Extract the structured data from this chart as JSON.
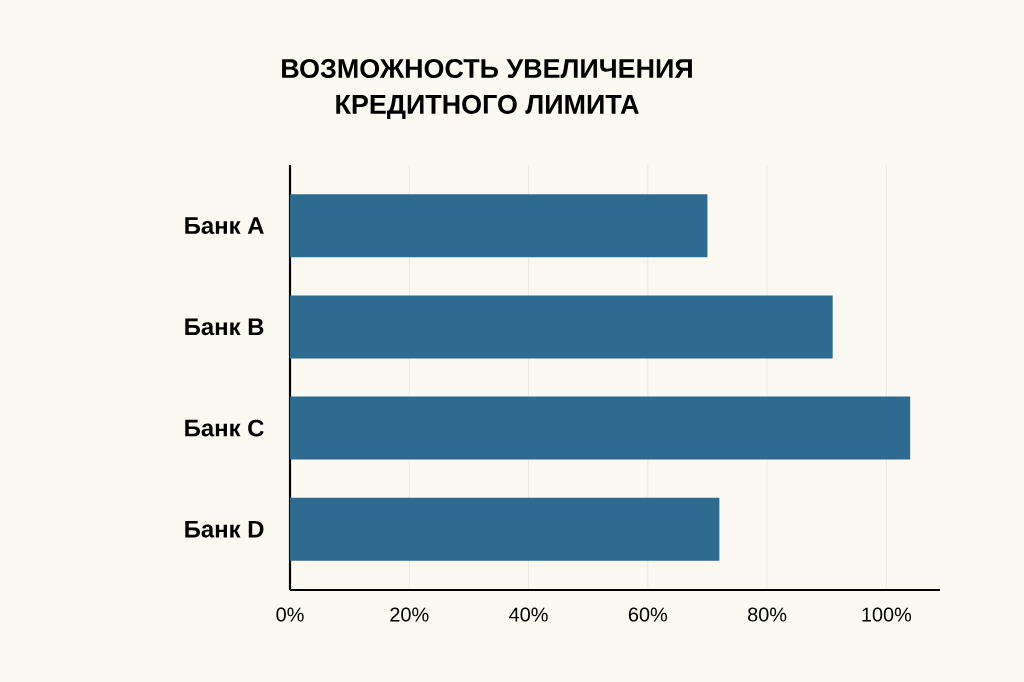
{
  "chart_data": {
    "type": "bar",
    "orientation": "horizontal",
    "title": "ВОЗМОЖНОСТЬ УВЕЛИЧЕНИЯ\nКРЕДИТНОГО ЛИМИТА",
    "categories": [
      "Банк A",
      "Банк B",
      "Банк C",
      "Банк D"
    ],
    "values": [
      70,
      91,
      104,
      72
    ],
    "color": "#2e6b91",
    "xlim": [
      0,
      109
    ],
    "xticks": [
      {
        "value": 0,
        "label": "0%"
      },
      {
        "value": 20,
        "label": "20%"
      },
      {
        "value": 40,
        "label": "40%"
      },
      {
        "value": 60,
        "label": "60%"
      },
      {
        "value": 80,
        "label": "80%"
      },
      {
        "value": 100,
        "label": "100%"
      }
    ],
    "grid": "x"
  }
}
